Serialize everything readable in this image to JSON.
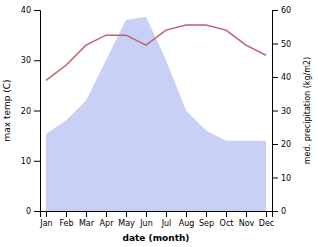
{
  "chart_data": {
    "type": "line",
    "categories": [
      "Jan",
      "Feb",
      "Mar",
      "Apr",
      "May",
      "Jun",
      "Jul",
      "Aug",
      "Sep",
      "Oct",
      "Nov",
      "Dec"
    ],
    "xlabel": "date (month)",
    "ylabel": "max temp (C)",
    "y2label": "med. precipitation (kg/m2)",
    "ylim": [
      0,
      40
    ],
    "yticks": [
      0,
      10,
      20,
      30,
      40
    ],
    "y2lim": [
      0,
      60
    ],
    "y2ticks": [
      0,
      10,
      20,
      30,
      40,
      50,
      60
    ],
    "series": [
      {
        "type": "area",
        "axis": "y2",
        "color": "#c8d0f5",
        "values": [
          23,
          27,
          33,
          45,
          57,
          58,
          45,
          30,
          24,
          21,
          21,
          21
        ]
      },
      {
        "type": "line",
        "color": "#c0626a",
        "values": [
          26,
          29,
          33,
          35,
          35,
          33,
          36,
          37,
          37,
          36,
          33,
          31
        ]
      }
    ]
  }
}
